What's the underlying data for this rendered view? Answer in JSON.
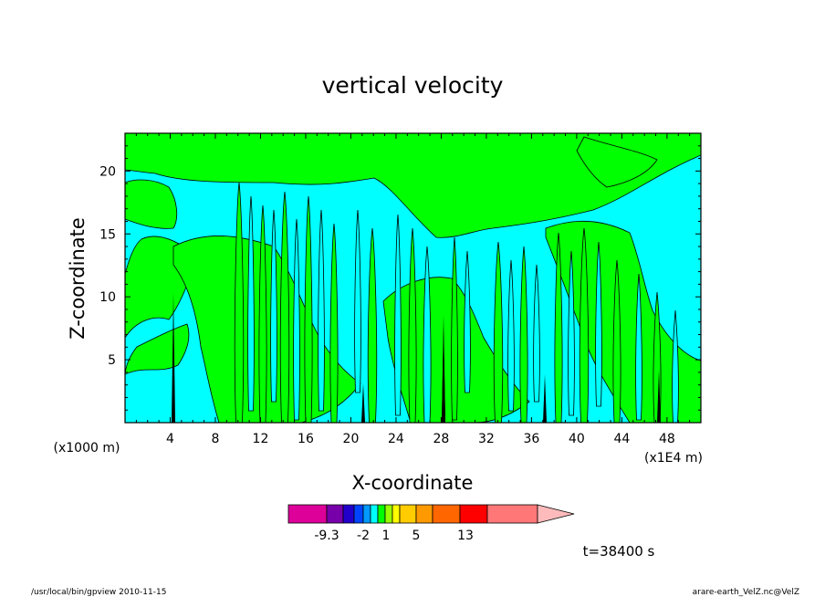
{
  "chart_data": {
    "type": "heatmap",
    "title": "vertical velocity",
    "xlabel": "X-coordinate",
    "ylabel": "Z-coordinate",
    "x_unit_left": "(x1000 m)",
    "x_unit_right": "(x1E4 m)",
    "xlim": [
      0,
      51
    ],
    "ylim": [
      0,
      23
    ],
    "x_ticks": [
      "4",
      "8",
      "12",
      "16",
      "20",
      "24",
      "28",
      "32",
      "36",
      "40",
      "44",
      "48"
    ],
    "y_ticks": [
      "5",
      "10",
      "15",
      "20"
    ],
    "colorbar": {
      "labels": [
        "-9.3",
        "-2",
        "1",
        "5",
        "13"
      ],
      "colors": [
        "#dd0099",
        "#7700aa",
        "#2200cc",
        "#0044ff",
        "#0099ff",
        "#00ffff",
        "#00ff00",
        "#99ff00",
        "#ffff00",
        "#ffcc00",
        "#ff9900",
        "#ff6600",
        "#ff0000",
        "#ff7777",
        "#ffbbbb"
      ],
      "background_color": "#00ffff",
      "positive_color": "#00ff00"
    },
    "time_label": "t=38400 s"
  },
  "footer": {
    "left": "/usr/local/bin/gpview  2010-11-15",
    "right": "arare-earth_VelZ.nc@VelZ"
  }
}
